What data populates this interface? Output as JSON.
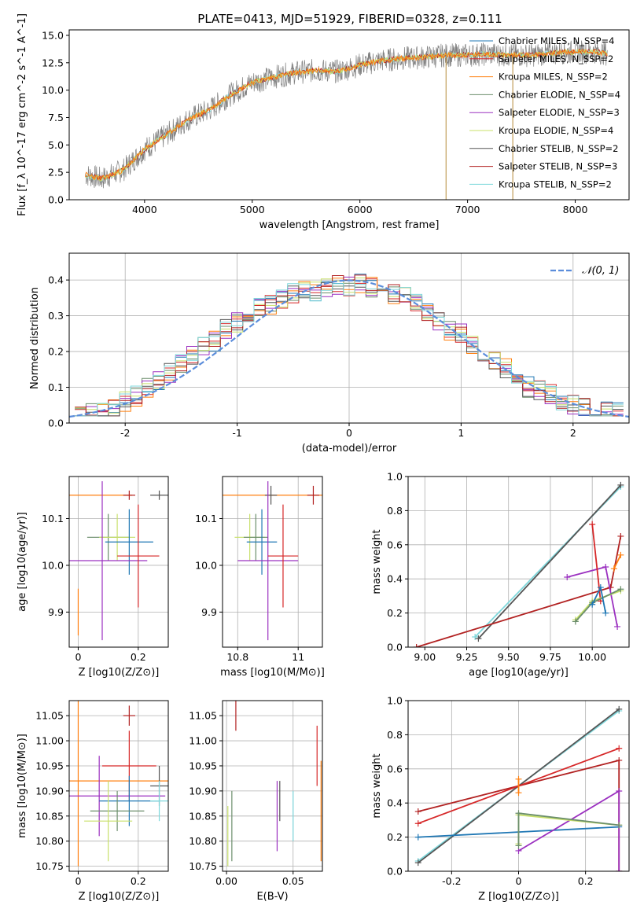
{
  "figure": {
    "title": "PLATE=0413, MJD=51929, FIBERID=0328, z=0.111"
  },
  "series_styles": [
    {
      "name": "Chabrier MILES, N_{SSP}=4",
      "color": "#1f77b4"
    },
    {
      "name": "Salpeter MILES, N_{SSP}=2",
      "color": "#d62728"
    },
    {
      "name": "Kroupa MILES, N_{SSP}=2",
      "color": "#ff7f0e"
    },
    {
      "name": "Chabrier ELODIE, N_{SSP}=4",
      "color": "#6b8e6b"
    },
    {
      "name": "Salpeter ELODIE, N_{SSP}=3",
      "color": "#9b30c0"
    },
    {
      "name": "Kroupa ELODIE, N_{SSP}=4",
      "color": "#c8e06a"
    },
    {
      "name": "Chabrier STELIB, N_{SSP}=2",
      "color": "#555555"
    },
    {
      "name": "Salpeter STELIB, N_{SSP}=3",
      "color": "#b22222"
    },
    {
      "name": "Kroupa STELIB, N_{SSP}=2",
      "color": "#7fd8dc"
    }
  ],
  "chart_data": [
    {
      "id": "spectrum",
      "type": "line",
      "title": "PLATE=0413, MJD=51929, FIBERID=0328, z=0.111",
      "xlabel": "wavelength [Angstrom, rest frame]",
      "ylabel": "Flux [f_λ 10^-17 erg cm^-2 s^-1 A^-1]",
      "xlim": [
        3300,
        8500
      ],
      "ylim": [
        0,
        15.5
      ],
      "xticks": [
        4000,
        5000,
        6000,
        7000,
        8000
      ],
      "yticks": [
        0.0,
        2.5,
        5.0,
        7.5,
        10.0,
        12.5,
        15.0
      ],
      "data_x": [
        3450,
        3600,
        3800,
        4000,
        4200,
        4400,
        4600,
        4800,
        5000,
        5200,
        5400,
        5600,
        5800,
        6000,
        6200,
        6400,
        6600,
        6800,
        7000,
        7200,
        7400,
        7600,
        7800,
        8000,
        8200,
        8300
      ],
      "data_y": [
        2.3,
        1.9,
        2.7,
        4.6,
        5.9,
        7.3,
        8.2,
        9.6,
        10.7,
        11.2,
        11.6,
        11.8,
        11.7,
        12.3,
        12.7,
        12.9,
        13.0,
        13.2,
        13.2,
        13.3,
        13.2,
        13.2,
        13.4,
        13.5,
        13.5,
        13.3
      ],
      "legend_position": "upper right",
      "legend_entries": [
        "Chabrier MILES, N_{SSP}=4",
        "Salpeter MILES, N_{SSP}=2",
        "Kroupa MILES, N_{SSP}=2",
        "Chabrier ELODIE, N_{SSP}=4",
        "Salpeter ELODIE, N_{SSP}=3",
        "Kroupa ELODIE, N_{SSP}=4",
        "Chabrier STELIB, N_{SSP}=2",
        "Salpeter STELIB, N_{SSP}=3",
        "Kroupa STELIB, N_{SSP}=2"
      ]
    },
    {
      "id": "residuals",
      "type": "line",
      "xlabel": "(data-model)/error",
      "ylabel": "Normed distribution",
      "xlim": [
        -2.5,
        2.5
      ],
      "ylim": [
        0,
        0.475
      ],
      "xticks": [
        -2,
        -1,
        0,
        1,
        2
      ],
      "yticks": [
        0.0,
        0.1,
        0.2,
        0.3,
        0.4
      ],
      "grid": true,
      "gaussian_label": "𝒩(0, 1)",
      "legend_position": "upper right",
      "bin_centers": [
        -2.4,
        -2.3,
        -2.2,
        -2.1,
        -2.0,
        -1.9,
        -1.8,
        -1.7,
        -1.6,
        -1.5,
        -1.4,
        -1.3,
        -1.2,
        -1.1,
        -1.0,
        -0.9,
        -0.8,
        -0.7,
        -0.6,
        -0.5,
        -0.4,
        -0.3,
        -0.2,
        -0.1,
        0.0,
        0.1,
        0.2,
        0.3,
        0.4,
        0.5,
        0.6,
        0.7,
        0.8,
        0.9,
        1.0,
        1.1,
        1.2,
        1.3,
        1.4,
        1.5,
        1.6,
        1.7,
        1.8,
        1.9,
        2.0,
        2.1,
        2.2,
        2.3,
        2.4
      ],
      "hist_values": [
        0.025,
        0.03,
        0.035,
        0.045,
        0.06,
        0.075,
        0.1,
        0.12,
        0.14,
        0.17,
        0.19,
        0.22,
        0.23,
        0.26,
        0.28,
        0.3,
        0.32,
        0.33,
        0.35,
        0.36,
        0.37,
        0.37,
        0.38,
        0.39,
        0.38,
        0.39,
        0.38,
        0.37,
        0.36,
        0.35,
        0.34,
        0.31,
        0.29,
        0.26,
        0.25,
        0.22,
        0.19,
        0.17,
        0.15,
        0.12,
        0.1,
        0.09,
        0.08,
        0.06,
        0.05,
        0.04,
        0.03,
        0.03,
        0.03
      ]
    },
    {
      "id": "age_vs_Z",
      "type": "scatter",
      "xlabel": "Z [log10(Z/Z⊙)]",
      "ylabel": "age [log10(age/yr)]",
      "xlim": [
        -0.03,
        0.3
      ],
      "ylim": [
        9.825,
        10.19
      ],
      "xticks": [
        0.0,
        0.2
      ],
      "yticks": [
        9.9,
        10.0,
        10.1
      ],
      "grid": true,
      "points": [
        {
          "x": 0.0,
          "y": 10.15,
          "xerr": 0.18,
          "yerr": 0.0,
          "series": 2
        },
        {
          "x": 0.17,
          "y": 10.15,
          "xerr": 0.02,
          "yerr": 0.01,
          "series": 7
        },
        {
          "x": 0.27,
          "y": 10.15,
          "xerr": 0.03,
          "yerr": 0.01,
          "series": 6
        },
        {
          "x": 0.1,
          "y": 10.06,
          "xerr": 0.07,
          "yerr": 0.05,
          "series": 3
        },
        {
          "x": 0.13,
          "y": 10.06,
          "xerr": 0.06,
          "yerr": 0.05,
          "series": 5
        },
        {
          "x": 0.17,
          "y": 10.05,
          "xerr": 0.08,
          "yerr": 0.07,
          "series": 0
        },
        {
          "x": 0.08,
          "y": 10.01,
          "xerr": 0.15,
          "yerr": 0.17,
          "series": 4
        },
        {
          "x": 0.2,
          "y": 10.02,
          "xerr": 0.07,
          "yerr": 0.11,
          "series": 1
        },
        {
          "x": 0.0,
          "y": 9.9,
          "xerr": 0.0,
          "yerr": 0.05,
          "series": 2
        }
      ]
    },
    {
      "id": "age_vs_mass",
      "type": "scatter",
      "xlabel": "mass [log10(M/M⊙)]",
      "xlim": [
        10.75,
        11.08
      ],
      "ylim": [
        9.825,
        10.19
      ],
      "xticks": [
        10.8,
        11.0
      ],
      "yticks": [
        9.9,
        10.0,
        10.1
      ],
      "grid": true,
      "points": [
        {
          "x": 10.92,
          "y": 10.15,
          "xerr": 0.18,
          "yerr": 0.0,
          "series": 2
        },
        {
          "x": 11.05,
          "y": 10.15,
          "xerr": 0.02,
          "yerr": 0.02,
          "series": 7
        },
        {
          "x": 10.91,
          "y": 10.15,
          "xerr": 0.02,
          "yerr": 0.02,
          "series": 6
        },
        {
          "x": 10.84,
          "y": 10.06,
          "xerr": 0.05,
          "yerr": 0.05,
          "series": 5
        },
        {
          "x": 10.86,
          "y": 10.06,
          "xerr": 0.04,
          "yerr": 0.05,
          "series": 3
        },
        {
          "x": 10.88,
          "y": 10.05,
          "xerr": 0.05,
          "yerr": 0.07,
          "series": 0
        },
        {
          "x": 10.9,
          "y": 10.01,
          "xerr": 0.1,
          "yerr": 0.17,
          "series": 4
        },
        {
          "x": 10.95,
          "y": 10.02,
          "xerr": 0.05,
          "yerr": 0.11,
          "series": 1
        }
      ]
    },
    {
      "id": "weight_vs_age",
      "type": "line",
      "xlabel": "age [log10(age/yr)]",
      "ylabel": "mass weight",
      "xlim": [
        8.9,
        10.22
      ],
      "ylim": [
        0,
        1.0
      ],
      "xticks": [
        9.0,
        9.25,
        9.5,
        9.75,
        10.0
      ],
      "xticklabels": [
        "9.00",
        "9.25",
        "9.50",
        "9.75",
        "10.00"
      ],
      "yticks": [
        0.0,
        0.2,
        0.4,
        0.6,
        0.8,
        1.0
      ],
      "grid": true,
      "lines": [
        {
          "series": 8,
          "x": [
            9.3,
            10.17
          ],
          "y": [
            0.06,
            0.94
          ]
        },
        {
          "series": 6,
          "x": [
            9.32,
            10.17
          ],
          "y": [
            0.05,
            0.95
          ]
        },
        {
          "series": 7,
          "x": [
            8.95,
            10.11,
            10.17
          ],
          "y": [
            0.0,
            0.35,
            0.65
          ]
        },
        {
          "series": 4,
          "x": [
            9.85,
            10.08,
            10.15
          ],
          "y": [
            0.41,
            0.47,
            0.12
          ]
        },
        {
          "series": 1,
          "x": [
            10.0,
            10.05
          ],
          "y": [
            0.72,
            0.27
          ]
        },
        {
          "series": 2,
          "x": [
            10.13,
            10.17
          ],
          "y": [
            0.46,
            0.54
          ]
        },
        {
          "series": 5,
          "x": [
            9.9,
            10.0,
            10.17
          ],
          "y": [
            0.16,
            0.27,
            0.33
          ]
        },
        {
          "series": 3,
          "x": [
            9.9,
            10.0,
            10.17
          ],
          "y": [
            0.15,
            0.26,
            0.34
          ]
        },
        {
          "series": 0,
          "x": [
            10.0,
            10.05,
            10.08
          ],
          "y": [
            0.25,
            0.35,
            0.2
          ]
        }
      ]
    },
    {
      "id": "mass_vs_Z",
      "type": "scatter",
      "xlabel": "Z [log10(Z/Z⊙)]",
      "ylabel": "mass [log10(M/M⊙)]",
      "xlim": [
        -0.03,
        0.3
      ],
      "ylim": [
        10.74,
        11.08
      ],
      "xticks": [
        0.0,
        0.2
      ],
      "yticks": [
        10.75,
        10.8,
        10.85,
        10.9,
        10.95,
        11.0,
        11.05
      ],
      "grid": true,
      "points": [
        {
          "x": 0.17,
          "y": 11.05,
          "xerr": 0.02,
          "yerr": 0.02,
          "series": 7
        },
        {
          "x": 0.17,
          "y": 10.95,
          "xerr": 0.09,
          "yerr": 0.07,
          "series": 1
        },
        {
          "x": 0.0,
          "y": 10.92,
          "xerr": 0.3,
          "yerr": 0.17,
          "series": 2
        },
        {
          "x": 0.27,
          "y": 10.91,
          "xerr": 0.03,
          "yerr": 0.04,
          "series": 6
        },
        {
          "x": 0.07,
          "y": 10.89,
          "xerr": 0.22,
          "yerr": 0.08,
          "series": 4
        },
        {
          "x": 0.17,
          "y": 10.88,
          "xerr": 0.1,
          "yerr": 0.05,
          "series": 0
        },
        {
          "x": 0.13,
          "y": 10.86,
          "xerr": 0.09,
          "yerr": 0.04,
          "series": 3
        },
        {
          "x": 0.1,
          "y": 10.84,
          "xerr": 0.08,
          "yerr": 0.08,
          "series": 5
        },
        {
          "x": 0.27,
          "y": 10.88,
          "xerr": 0.03,
          "yerr": 0.04,
          "series": 8
        }
      ]
    },
    {
      "id": "mass_vs_EBV",
      "type": "scatter",
      "xlabel": "E(B-V)",
      "xlim": [
        -0.003,
        0.072
      ],
      "ylim": [
        10.74,
        11.08
      ],
      "xticks": [
        0.0,
        0.05
      ],
      "xticklabels": [
        "0.00",
        "0.05"
      ],
      "yticks": [
        10.75,
        10.8,
        10.85,
        10.9,
        10.95,
        11.0,
        11.05
      ],
      "grid": true,
      "points": [
        {
          "x": 0.007,
          "y": 11.05,
          "xerr": 0.0,
          "yerr": 0.03,
          "series": 7
        },
        {
          "x": 0.068,
          "y": 10.97,
          "xerr": 0.0,
          "yerr": 0.06,
          "series": 1
        },
        {
          "x": 0.071,
          "y": 10.86,
          "xerr": 0.0,
          "yerr": 0.1,
          "series": 2
        },
        {
          "x": 0.04,
          "y": 10.88,
          "xerr": 0.0,
          "yerr": 0.04,
          "series": 6
        },
        {
          "x": 0.038,
          "y": 10.85,
          "xerr": 0.0,
          "yerr": 0.07,
          "series": 4
        },
        {
          "x": 0.05,
          "y": 10.85,
          "xerr": 0.0,
          "yerr": 0.05,
          "series": 8
        },
        {
          "x": 0.004,
          "y": 10.83,
          "xerr": 0.0,
          "yerr": 0.07,
          "series": 3
        },
        {
          "x": 0.001,
          "y": 10.81,
          "xerr": 0.0,
          "yerr": 0.06,
          "series": 5
        }
      ]
    },
    {
      "id": "weight_vs_Z",
      "type": "line",
      "xlabel": "Z [log10(Z/Z⊙)]",
      "ylabel": "mass weight",
      "xlim": [
        -0.33,
        0.33
      ],
      "ylim": [
        0,
        1.0
      ],
      "xticks": [
        -0.2,
        0.0,
        0.2
      ],
      "yticks": [
        0.0,
        0.2,
        0.4,
        0.6,
        0.8,
        1.0
      ],
      "grid": true,
      "lines": [
        {
          "series": 8,
          "x": [
            -0.3,
            0.3
          ],
          "y": [
            0.06,
            0.94
          ]
        },
        {
          "series": 6,
          "x": [
            -0.3,
            0.3
          ],
          "y": [
            0.05,
            0.95
          ]
        },
        {
          "series": 7,
          "x": [
            -0.3,
            0.3,
            0.3
          ],
          "y": [
            0.35,
            0.65,
            0.0
          ]
        },
        {
          "series": 1,
          "x": [
            -0.3,
            0.3
          ],
          "y": [
            0.28,
            0.72
          ]
        },
        {
          "series": 0,
          "x": [
            -0.3,
            0.3
          ],
          "y": [
            0.2,
            0.26
          ]
        },
        {
          "series": 4,
          "x": [
            0.0,
            0.3,
            0.3
          ],
          "y": [
            0.12,
            0.47,
            0.0
          ]
        },
        {
          "series": 5,
          "x": [
            0.0,
            0.0,
            0.3
          ],
          "y": [
            0.16,
            0.33,
            0.27
          ]
        },
        {
          "series": 3,
          "x": [
            0.0,
            0.0,
            0.3
          ],
          "y": [
            0.15,
            0.34,
            0.27
          ]
        },
        {
          "series": 2,
          "x": [
            0.0,
            0.0
          ],
          "y": [
            0.46,
            0.54
          ]
        }
      ]
    }
  ]
}
